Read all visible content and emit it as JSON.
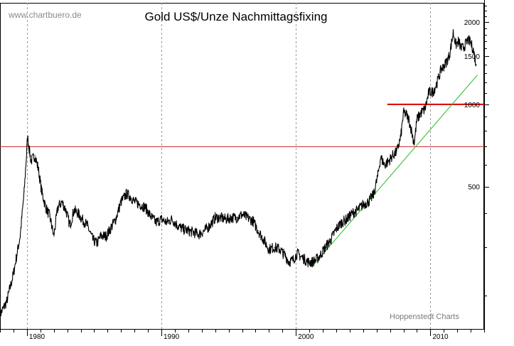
{
  "chart_data": {
    "type": "line",
    "title": "Gold US$/Unze Nachmittagsfixing",
    "watermark": "www.chartbuero.de",
    "credit": "Hoppenstedt Charts",
    "y_scale": "log",
    "ylim": [
      150,
      2350
    ],
    "xlim": [
      1978.0,
      2014.0
    ],
    "grid": {
      "vertical": true,
      "style": "dashed"
    },
    "x_ticks": [
      {
        "value": 1980,
        "label": "1980"
      },
      {
        "value": 1990,
        "label": "1990"
      },
      {
        "value": 2000,
        "label": "2000"
      },
      {
        "value": 2010,
        "label": "2010"
      }
    ],
    "y_ticks": [
      {
        "value": 500,
        "label": "500"
      },
      {
        "value": 1000,
        "label": "1000"
      },
      {
        "value": 1500,
        "label": "1500"
      },
      {
        "value": 2000,
        "label": "2000"
      }
    ],
    "series": [
      {
        "color": "#000000",
        "x": [
          1978.0,
          1978.5,
          1979.0,
          1979.5,
          1979.8,
          1980.05,
          1980.3,
          1980.6,
          1980.85,
          1981.1,
          1981.4,
          1981.7,
          1982.0,
          1982.3,
          1982.6,
          1982.9,
          1983.2,
          1983.5,
          1983.8,
          1984.1,
          1984.5,
          1984.9,
          1985.2,
          1985.5,
          1985.9,
          1986.2,
          1986.6,
          1987.0,
          1987.4,
          1987.7,
          1988.0,
          1988.4,
          1988.8,
          1989.2,
          1989.6,
          1990.0,
          1990.4,
          1990.8,
          1991.2,
          1991.6,
          1992.0,
          1992.4,
          1992.8,
          1993.2,
          1993.6,
          1994.0,
          1994.4,
          1994.8,
          1995.2,
          1995.6,
          1996.0,
          1996.4,
          1996.8,
          1997.2,
          1997.6,
          1998.0,
          1998.4,
          1998.8,
          1999.2,
          1999.5,
          1999.8,
          2000.1,
          2000.5,
          2000.9,
          2001.2,
          2001.5,
          2001.8,
          2002.2,
          2002.6,
          2003.0,
          2003.4,
          2003.8,
          2004.2,
          2004.6,
          2005.0,
          2005.4,
          2005.8,
          2006.1,
          2006.3,
          2006.6,
          2006.9,
          2007.2,
          2007.5,
          2007.8,
          2008.0,
          2008.2,
          2008.4,
          2008.6,
          2008.8,
          2009.0,
          2009.3,
          2009.6,
          2009.9,
          2010.2,
          2010.5,
          2010.8,
          2011.1,
          2011.4,
          2011.6,
          2011.7,
          2011.9,
          2012.1,
          2012.3,
          2012.5,
          2012.8,
          2013.0,
          2013.2,
          2013.4
        ],
        "values": [
          170,
          190,
          240,
          330,
          480,
          760,
          620,
          650,
          580,
          480,
          420,
          390,
          330,
          420,
          440,
          410,
          360,
          410,
          400,
          380,
          360,
          320,
          310,
          330,
          330,
          350,
          380,
          440,
          470,
          460,
          440,
          430,
          420,
          390,
          370,
          380,
          370,
          380,
          360,
          350,
          345,
          340,
          335,
          345,
          360,
          385,
          385,
          380,
          385,
          385,
          395,
          385,
          375,
          345,
          320,
          295,
          300,
          295,
          280,
          265,
          270,
          285,
          275,
          265,
          265,
          270,
          280,
          300,
          320,
          350,
          370,
          380,
          400,
          410,
          430,
          440,
          470,
          550,
          640,
          600,
          620,
          650,
          670,
          760,
          930,
          920,
          880,
          800,
          720,
          880,
          930,
          960,
          1110,
          1110,
          1200,
          1340,
          1400,
          1500,
          1700,
          1830,
          1650,
          1700,
          1600,
          1620,
          1720,
          1680,
          1580,
          1400
        ]
      }
    ],
    "reference_lines": [
      {
        "kind": "horizontal",
        "y": 700,
        "x_from": 1978.0,
        "x_to": 2014.0,
        "color": "#d03030"
      },
      {
        "kind": "horizontal",
        "y": 1000,
        "x_from": 2006.8,
        "x_to": 2014.0,
        "color": "#d80000"
      }
    ],
    "trend_lines": [
      {
        "x1": 2001.2,
        "y1": 255,
        "x2": 2013.5,
        "y2": 1280,
        "color": "#22bb22"
      }
    ]
  }
}
